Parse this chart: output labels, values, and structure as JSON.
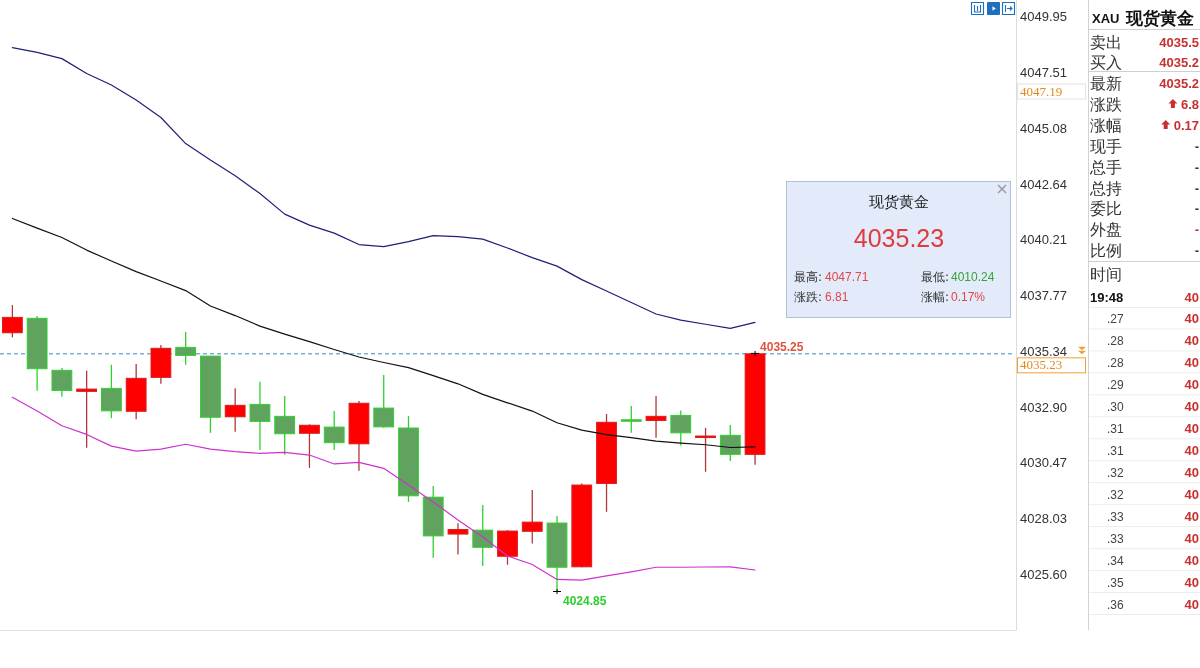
{
  "chart_data": {
    "type": "candlestick",
    "categories": [
      null,
      null,
      null,
      null,
      null,
      null,
      null,
      null,
      null,
      null,
      null,
      null,
      null,
      null,
      null,
      null,
      null,
      null,
      null,
      null,
      null,
      null,
      null,
      null,
      null,
      null,
      null,
      null,
      null,
      null,
      null,
      null,
      null,
      null,
      null,
      null,
      null,
      null,
      null,
      null,
      null
    ],
    "ohlc": [
      [
        4036.15,
        4037.36,
        4035.95,
        4036.82
      ],
      [
        4036.78,
        4036.88,
        4033.62,
        4034.58
      ],
      [
        4034.51,
        4034.61,
        4033.35,
        4033.63
      ],
      [
        4033.59,
        4034.49,
        4031.13,
        4033.69
      ],
      [
        4033.72,
        4034.75,
        4032.42,
        4032.74
      ],
      [
        4032.72,
        4034.78,
        4032.37,
        4034.16
      ],
      [
        4034.2,
        4035.61,
        4033.92,
        4035.47
      ],
      [
        4035.51,
        4036.18,
        4034.75,
        4035.16
      ],
      [
        4035.13,
        4035.13,
        4031.78,
        4032.46
      ],
      [
        4032.48,
        4033.73,
        4031.83,
        4032.98
      ],
      [
        4033.02,
        4034.01,
        4031.03,
        4032.28
      ],
      [
        4032.5,
        4033.39,
        4030.82,
        4031.74
      ],
      [
        4031.76,
        4032.15,
        4030.25,
        4032.11
      ],
      [
        4032.03,
        4032.73,
        4031.03,
        4031.35
      ],
      [
        4031.3,
        4033.17,
        4030.12,
        4033.07
      ],
      [
        4032.86,
        4034.3,
        4032.0,
        4032.04
      ],
      [
        4031.99,
        4032.51,
        4028.76,
        4029.03
      ],
      [
        4028.97,
        4029.46,
        4026.32,
        4027.28
      ],
      [
        4027.36,
        4027.83,
        4026.47,
        4027.56
      ],
      [
        4027.53,
        4028.63,
        4025.96,
        4026.78
      ],
      [
        4026.39,
        4027.53,
        4026.02,
        4027.49
      ],
      [
        4027.48,
        4029.28,
        4026.95,
        4027.88
      ],
      [
        4027.84,
        4028.15,
        4024.85,
        4025.91
      ],
      [
        4025.93,
        4029.57,
        4025.91,
        4029.5
      ],
      [
        4029.57,
        4032.6,
        4028.33,
        4032.24
      ],
      [
        4032.35,
        4032.95,
        4031.78,
        4032.34
      ],
      [
        4032.32,
        4033.39,
        4031.56,
        4032.5
      ],
      [
        4032.54,
        4032.76,
        4031.23,
        4031.78
      ],
      [
        4031.63,
        4032.0,
        4030.08,
        4031.64
      ],
      [
        4031.67,
        4032.12,
        4030.55,
        4030.84
      ],
      [
        4030.84,
        4035.25,
        4030.39,
        4035.23
      ],
      null,
      null,
      null,
      null,
      null,
      null,
      null,
      null,
      null,
      null
    ],
    "colors": [
      "#ff0000",
      "#5fa35f",
      "#5fa35f",
      "#ff0000",
      "#5fa35f",
      "#ff0000",
      "#ff0000",
      "#5fa35f",
      "#5fa35f",
      "#ff0000",
      "#5fa35f",
      "#5fa35f",
      "#ff0000",
      "#5fa35f",
      "#ff0000",
      "#5fa35f",
      "#5fa35f",
      "#5fa35f",
      "#ff0000",
      "#5fa35f",
      "#ff0000",
      "#ff0000",
      "#5fa35f",
      "#ff0000",
      "#ff0000",
      "#5fa35f",
      "#ff0000",
      "#5fa35f",
      "#ff0000",
      "#5fa35f",
      "#ff0000",
      null,
      null,
      null,
      null,
      null,
      null,
      null,
      null,
      null,
      null
    ],
    "series": [
      {
        "type": "line",
        "color": "#1f1f7a",
        "values": [
          4048.6,
          4048.39,
          4048.12,
          4047.47,
          4046.97,
          4046.31,
          4045.55,
          4044.41,
          4043.69,
          4043.01,
          4042.23,
          4041.33,
          4040.85,
          4040.5,
          4040.0,
          4039.91,
          4040.13,
          4040.39,
          4040.35,
          4040.24,
          4039.85,
          4039.43,
          4039.06,
          4038.47,
          4037.97,
          4037.47,
          4036.97,
          4036.7,
          4036.52,
          4036.34,
          4036.6,
          null,
          null,
          null,
          null,
          null,
          null,
          null,
          null,
          null,
          null
        ]
      },
      {
        "type": "line",
        "color": "#111111",
        "values": [
          4041.14,
          4040.72,
          4040.31,
          4039.76,
          4039.28,
          4038.82,
          4038.41,
          4037.99,
          4037.32,
          4036.9,
          4036.44,
          4036.09,
          4035.76,
          4035.42,
          4035.09,
          4034.85,
          4034.63,
          4034.28,
          4033.92,
          4033.46,
          4033.09,
          4032.73,
          4032.22,
          4031.9,
          4031.7,
          4031.57,
          4031.42,
          4031.33,
          4031.26,
          4031.14,
          4031.17,
          null,
          null,
          null,
          null,
          null,
          null,
          null,
          null,
          null,
          null
        ]
      },
      {
        "type": "line",
        "color": "#cc33cc",
        "values": [
          4033.33,
          4032.73,
          4032.09,
          4031.71,
          4031.2,
          4030.98,
          4031.07,
          4031.28,
          4031.07,
          4030.96,
          4030.88,
          4030.93,
          4030.81,
          4030.42,
          4030.49,
          4030.23,
          4029.5,
          4028.76,
          4027.97,
          4027.23,
          4026.4,
          4026.03,
          4025.38,
          4025.35,
          4025.53,
          4025.71,
          4025.91,
          4025.91,
          4025.92,
          4025.93,
          4025.79,
          null,
          null,
          null,
          null,
          null,
          null,
          null,
          null,
          null,
          null
        ]
      }
    ],
    "ylim": [
      4023.17,
      4050.68
    ],
    "yticks": [
      4049.95,
      4047.51,
      4045.08,
      4042.64,
      4040.21,
      4037.77,
      4035.34,
      {
        "value": 4032.9,
        "label": "4032.90"
      },
      4030.47,
      4028.03,
      {
        "value": 4025.6,
        "label": "4025.60"
      }
    ],
    "tick_labels": "y",
    "ref_lines": [
      {
        "axis": "y",
        "value": 4035.23,
        "label": "4035.23",
        "color": "#3d8cc0",
        "line_style": "dashed"
      }
    ],
    "annotations": [
      {
        "text": "4035.25",
        "y": 4035.25
      },
      "4024.85",
      "4047.19",
      "现货黄金",
      "4035.23",
      "最高:",
      "4047.71",
      "最低:",
      "4010.24",
      "涨跌:",
      "6.81",
      "涨幅:",
      "0.17%",
      "XAU",
      "现货黄金",
      "卖出",
      "4035.5",
      "买入",
      "4035.2",
      "最新",
      "4035.2",
      "涨跌",
      "6.8",
      "涨幅",
      "0.17",
      "现手",
      "-",
      "总手",
      "-",
      "总持",
      "-",
      "委比",
      "-",
      "外盘",
      "-",
      "比例",
      "-",
      "时间",
      "19:48",
      "40",
      ".27",
      "40",
      ".28",
      "40",
      ".28",
      "40",
      ".29",
      "40",
      ".30",
      "40",
      ".31",
      "40",
      ".31",
      "40",
      ".32",
      "40",
      ".32",
      "40",
      ".33",
      "40",
      ".33",
      "40",
      ".34",
      "40",
      ".35",
      "40",
      ".36",
      "40"
    ]
  }
}
